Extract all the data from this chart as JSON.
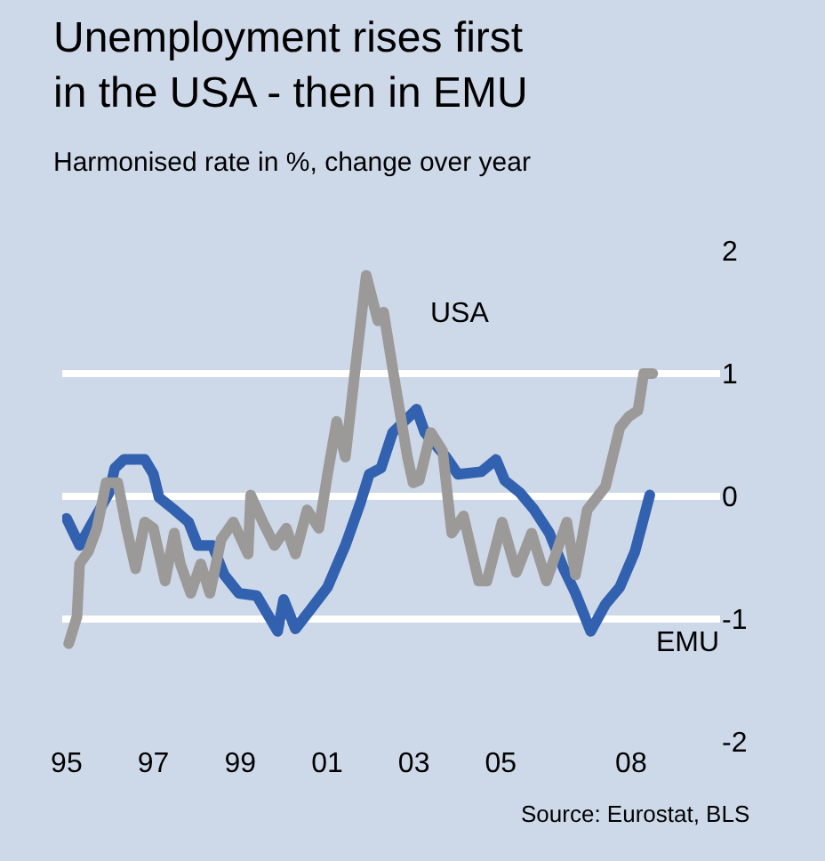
{
  "chart_data": {
    "type": "line",
    "title": "Unemployment rises first in the USA - then in EMU",
    "subtitle": "Harmonised rate in %, change over year",
    "xlim": [
      1994.9,
      2010.05
    ],
    "xticks": [
      {
        "value": 1995,
        "label": "95"
      },
      {
        "value": 1997,
        "label": "97"
      },
      {
        "value": 1999,
        "label": "99"
      },
      {
        "value": 2001,
        "label": "01"
      },
      {
        "value": 2003,
        "label": "03"
      },
      {
        "value": 2005,
        "label": "05"
      },
      {
        "value": 2008,
        "label": "08"
      }
    ],
    "ylim": [
      -2,
      2
    ],
    "yticks": [
      -2,
      -1,
      0,
      1,
      2
    ],
    "grid": "y",
    "legend": false,
    "series": [
      {
        "name": "EMU",
        "color": "#3261b0",
        "x": [
          1995.0,
          1995.3,
          1995.57,
          1995.98,
          1996.11,
          1996.32,
          1996.8,
          1997.0,
          1997.13,
          1997.48,
          1997.81,
          1998.02,
          1998.36,
          1998.63,
          1998.97,
          1999.38,
          1999.86,
          2000.0,
          2000.27,
          2000.6,
          2001.01,
          2001.42,
          2001.76,
          2001.97,
          2002.24,
          2002.51,
          2002.92,
          2003.06,
          2003.25,
          2003.74,
          2004.01,
          2004.55,
          2004.89,
          2005.09,
          2005.44,
          2005.77,
          2006.12,
          2006.45,
          2006.72,
          2007.07,
          2007.41,
          2007.74,
          2008.09,
          2008.43
        ],
        "values": [
          -0.18,
          -0.4,
          -0.23,
          0.03,
          0.23,
          0.3,
          0.3,
          0.18,
          -0.01,
          -0.11,
          -0.21,
          -0.4,
          -0.4,
          -0.64,
          -0.79,
          -0.81,
          -1.1,
          -0.84,
          -1.08,
          -0.93,
          -0.74,
          -0.4,
          -0.06,
          0.18,
          0.23,
          0.52,
          0.66,
          0.71,
          0.52,
          0.32,
          0.18,
          0.2,
          0.3,
          0.13,
          0.03,
          -0.11,
          -0.3,
          -0.59,
          -0.79,
          -1.1,
          -0.88,
          -0.74,
          -0.45,
          0.01
        ]
      },
      {
        "name": "USA",
        "color": "#9b9a98",
        "x": [
          1995.05,
          1995.24,
          1995.3,
          1995.5,
          1995.7,
          1995.91,
          1996.18,
          1996.38,
          1996.59,
          1996.8,
          1997.0,
          1997.27,
          1997.48,
          1997.62,
          1997.86,
          1998.09,
          1998.3,
          1998.56,
          1998.84,
          1999.18,
          1999.24,
          1999.52,
          1999.79,
          2000.06,
          2000.27,
          2000.54,
          2000.81,
          2001.01,
          2001.22,
          2001.42,
          2001.62,
          2001.9,
          2002.17,
          2002.3,
          2002.58,
          2002.85,
          2002.98,
          2003.12,
          2003.39,
          2003.66,
          2003.87,
          2004.14,
          2004.49,
          2004.68,
          2005.03,
          2005.36,
          2005.71,
          2006.05,
          2006.52,
          2006.72,
          2006.99,
          2007.41,
          2007.74,
          2007.95,
          2008.16,
          2008.29,
          2008.5
        ],
        "values": [
          -1.2,
          -0.98,
          -0.55,
          -0.45,
          -0.26,
          0.11,
          0.11,
          -0.26,
          -0.59,
          -0.21,
          -0.26,
          -0.69,
          -0.3,
          -0.55,
          -0.79,
          -0.55,
          -0.79,
          -0.35,
          -0.21,
          -0.47,
          0.01,
          -0.21,
          -0.4,
          -0.26,
          -0.47,
          -0.11,
          -0.26,
          0.18,
          0.61,
          0.32,
          0.95,
          1.8,
          1.43,
          1.5,
          0.89,
          0.32,
          0.11,
          0.13,
          0.52,
          0.37,
          -0.3,
          -0.16,
          -0.69,
          -0.69,
          -0.21,
          -0.62,
          -0.3,
          -0.69,
          -0.21,
          -0.64,
          -0.11,
          0.08,
          0.56,
          0.65,
          0.7,
          1.0,
          1.0
        ]
      }
    ],
    "annotations": [
      "Source: Eurostat, BLS"
    ]
  }
}
